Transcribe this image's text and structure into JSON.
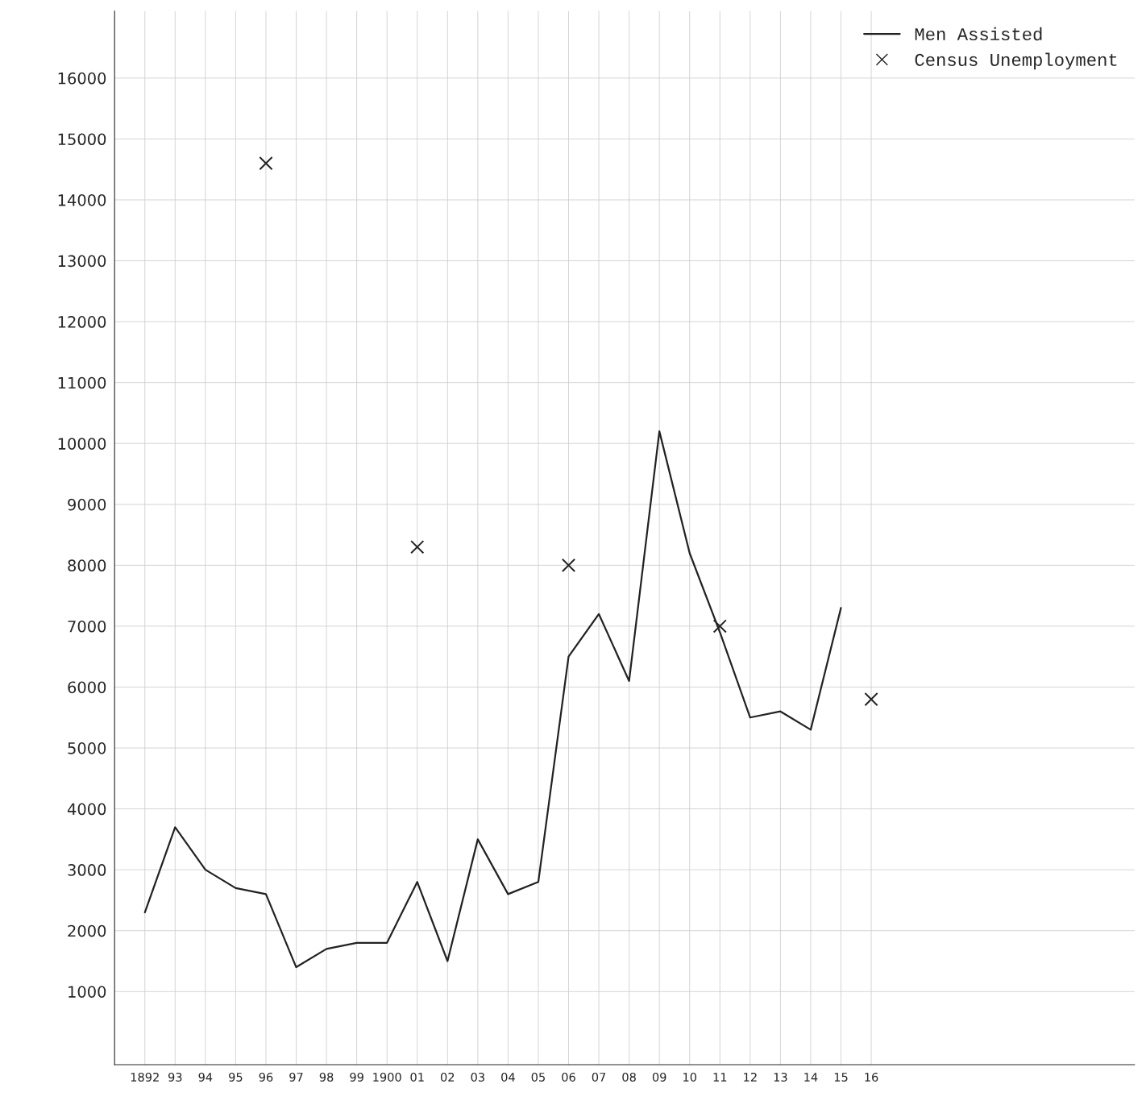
{
  "chart_data": {
    "type": "line",
    "x": [
      1892,
      1893,
      1894,
      1895,
      1896,
      1897,
      1898,
      1899,
      1900,
      1901,
      1902,
      1903,
      1904,
      1905,
      1906,
      1907,
      1908,
      1909,
      1910,
      1911,
      1912,
      1913,
      1914,
      1915
    ],
    "series": [
      {
        "name": "Men Assisted",
        "color": "#222222",
        "marker": "none",
        "values": [
          2300,
          3700,
          3000,
          2700,
          2600,
          1400,
          1700,
          1800,
          1800,
          2800,
          1500,
          3500,
          2600,
          2800,
          6500,
          7200,
          6100,
          10200,
          8200,
          6900,
          5500,
          5600,
          5300,
          7300
        ]
      },
      {
        "name": "Census Unemployment",
        "type": "scatter",
        "color": "#222222",
        "marker": "cross",
        "x": [
          1896,
          1901,
          1906,
          1911,
          1916
        ],
        "values": [
          14600,
          8300,
          8000,
          7000,
          5800
        ]
      }
    ],
    "xlim": [
      1891,
      1924.7
    ],
    "ylim": [
      -200,
      17100
    ],
    "xticks": [
      1892,
      {
        "value": 1893,
        "label": "93"
      },
      {
        "value": 1894,
        "label": "94"
      },
      {
        "value": 1895,
        "label": "95"
      },
      {
        "value": 1896,
        "label": "96"
      },
      {
        "value": 1897,
        "label": "97"
      },
      {
        "value": 1898,
        "label": "98"
      },
      {
        "value": 1899,
        "label": "99"
      },
      1900,
      {
        "value": 1901,
        "label": "01"
      },
      {
        "value": 1902,
        "label": "02"
      },
      {
        "value": 1903,
        "label": "03"
      },
      {
        "value": 1904,
        "label": "04"
      },
      {
        "value": 1905,
        "label": "05"
      },
      {
        "value": 1906,
        "label": "06"
      },
      {
        "value": 1907,
        "label": "07"
      },
      {
        "value": 1908,
        "label": "08"
      },
      {
        "value": 1909,
        "label": "09"
      },
      {
        "value": 1910,
        "label": "10"
      },
      {
        "value": 1911,
        "label": "11"
      },
      {
        "value": 1912,
        "label": "12"
      },
      {
        "value": 1913,
        "label": "13"
      },
      {
        "value": 1914,
        "label": "14"
      },
      {
        "value": 1915,
        "label": "15"
      },
      {
        "value": 1916,
        "label": "16"
      }
    ],
    "yticks": [
      1000,
      2000,
      3000,
      4000,
      5000,
      6000,
      7000,
      8000,
      9000,
      10000,
      11000,
      12000,
      13000,
      14000,
      15000,
      16000
    ],
    "grid": true,
    "legend": "top right"
  }
}
